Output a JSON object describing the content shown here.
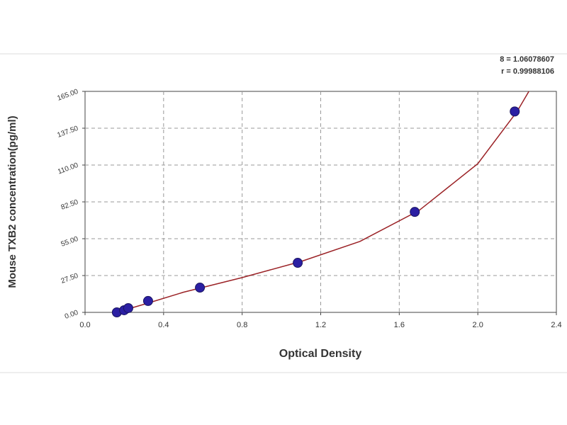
{
  "chart_data": {
    "type": "scatter",
    "x_label": "Optical Density",
    "y_label": "Mouse TXB2 concentration(pg/ml)",
    "annotations": [
      "8 = 1.06078607",
      "r = 0.99988106"
    ],
    "xlim": [
      0,
      2.4
    ],
    "xticks": [
      {
        "value": 0,
        "label": "0.0"
      },
      0.4,
      0.8,
      1.2,
      1.6,
      {
        "value": 2,
        "label": "2.0"
      },
      2.4
    ],
    "ylim": [
      0,
      165
    ],
    "yticks": [
      {
        "value": 0,
        "label": "0.00"
      },
      {
        "value": 27.5,
        "label": "27.50"
      },
      {
        "value": 55,
        "label": "55.00"
      },
      {
        "value": 82.5,
        "label": "82.50"
      },
      {
        "value": 110,
        "label": "110.00"
      },
      {
        "value": 137.5,
        "label": "137.50"
      },
      {
        "value": 165,
        "label": "165.00"
      }
    ],
    "grid": true,
    "series": [
      {
        "type": "scatter",
        "color": "#2b1fa3",
        "x": [
          0.162,
          0.199,
          0.22,
          0.321,
          0.585,
          1.083,
          1.679,
          2.188
        ],
        "values": [
          0,
          1.6,
          3.2,
          8.5,
          18.5,
          37,
          75,
          150
        ]
      },
      {
        "type": "line",
        "color": "#9b2226",
        "x": [
          0.16,
          0.3,
          0.5,
          0.8,
          1.1,
          1.4,
          1.7,
          2.0,
          2.2,
          2.26
        ],
        "values": [
          0,
          6,
          15,
          26,
          38,
          53,
          76,
          111,
          150,
          165
        ]
      }
    ]
  }
}
